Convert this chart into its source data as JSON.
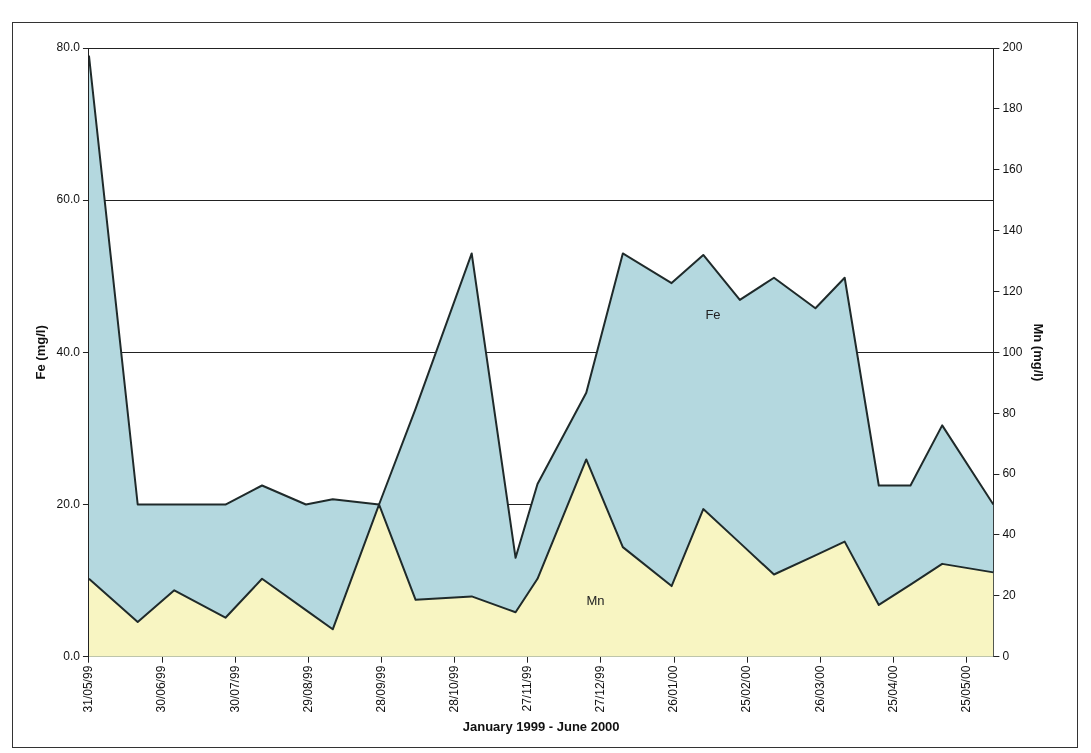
{
  "chart_data": {
    "type": "area",
    "xlabel": "January 1999 - June 2000",
    "ylabel": "Fe (mg/l)",
    "y2label": "Mn (mg/l)",
    "x": [
      "1999-05-31",
      "1999-06-20",
      "1999-07-05",
      "1999-07-26",
      "1999-08-10",
      "1999-08-28",
      "1999-09-08",
      "1999-09-27",
      "1999-10-12",
      "1999-11-04",
      "1999-11-22",
      "1999-12-01",
      "1999-12-21",
      "2000-01-05",
      "2000-01-25",
      "2000-02-07",
      "2000-02-22",
      "2000-03-07",
      "2000-03-24",
      "2000-04-05",
      "2000-04-19",
      "2000-05-02",
      "2000-05-15",
      "2000-06-05"
    ],
    "series": [
      {
        "name": "Fe",
        "color": "#b4d8df",
        "values": [
          79,
          20,
          20,
          20,
          22.5,
          20,
          20.7,
          20,
          32.6,
          53,
          13,
          22.7,
          34.7,
          53,
          49.1,
          52.8,
          46.9,
          49.8,
          45.8,
          49.8,
          22.5,
          22.5,
          30.4,
          20
        ]
      },
      {
        "name": "Mn",
        "color": "#f8f5c2",
        "axis": "y2",
        "values": [
          25.6,
          11.4,
          21.8,
          12.8,
          25.6,
          15.3,
          9,
          50,
          18.7,
          19.8,
          14.6,
          25.6,
          64.8,
          36,
          23.2,
          48.5,
          37.4,
          27,
          33.3,
          37.8,
          17,
          23.7,
          30.5,
          27.7
        ]
      }
    ],
    "xlim": [
      "1999-05-31",
      "2000-06-05"
    ],
    "xticks": [
      {
        "value": "1999-05-31",
        "label": "31/05/99"
      },
      {
        "value": "1999-06-30",
        "label": "30/06/99"
      },
      {
        "value": "1999-07-30",
        "label": "30/07/99"
      },
      {
        "value": "1999-08-29",
        "label": "29/08/99"
      },
      {
        "value": "1999-09-28",
        "label": "28/09/99"
      },
      {
        "value": "1999-10-28",
        "label": "28/10/99"
      },
      {
        "value": "1999-11-27",
        "label": "27/11/99"
      },
      {
        "value": "1999-12-27",
        "label": "27/12/99"
      },
      {
        "value": "2000-01-26",
        "label": "26/01/00"
      },
      {
        "value": "2000-02-25",
        "label": "25/02/00"
      },
      {
        "value": "2000-03-26",
        "label": "26/03/00"
      },
      {
        "value": "2000-04-25",
        "label": "25/04/00"
      },
      {
        "value": "2000-05-25",
        "label": "25/05/00"
      }
    ],
    "ylim": [
      0,
      80
    ],
    "yticks": [
      {
        "value": 0,
        "label": "0.0"
      },
      {
        "value": 20,
        "label": "20.0"
      },
      {
        "value": 40,
        "label": "40.0"
      },
      {
        "value": 60,
        "label": "60.0"
      },
      {
        "value": 80,
        "label": "80.0"
      }
    ],
    "y2lim": [
      0,
      200
    ],
    "y2ticks": [
      0,
      20,
      40,
      60,
      80,
      100,
      120,
      140,
      160,
      180,
      200
    ],
    "grid": "y",
    "legend": false,
    "marker": "none",
    "line_style": "solid"
  }
}
